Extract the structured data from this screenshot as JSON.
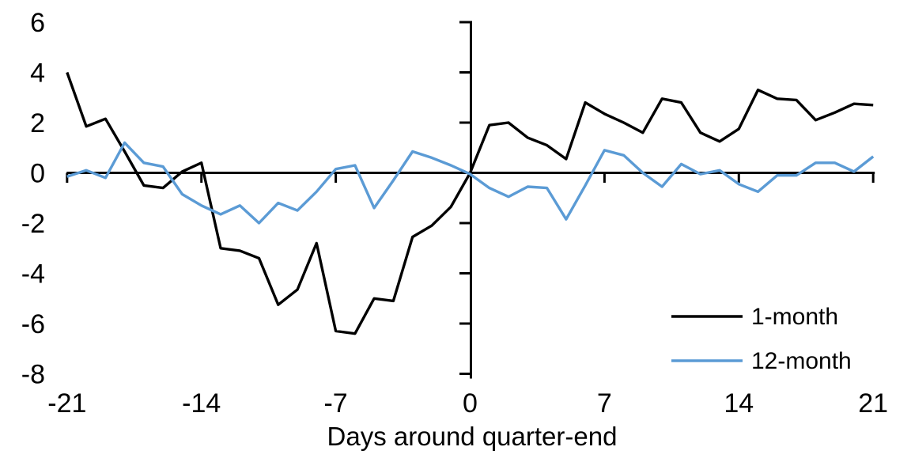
{
  "chart_data": {
    "type": "line",
    "title": "",
    "xlabel": "Days around quarter-end",
    "ylabel": "",
    "xlim": [
      -21,
      21
    ],
    "ylim": [
      -8,
      6
    ],
    "x_ticks": [
      -21,
      -14,
      -7,
      0,
      7,
      14,
      21
    ],
    "y_ticks": [
      6,
      4,
      2,
      0,
      -2,
      -4,
      -6,
      -8
    ],
    "grid": false,
    "legend_position": "bottom-right",
    "axis_color": "#000000",
    "x": [
      -21,
      -20,
      -19,
      -18,
      -17,
      -16,
      -15,
      -14,
      -13,
      -12,
      -11,
      -10,
      -9,
      -8,
      -7,
      -6,
      -5,
      -4,
      -3,
      -2,
      -1,
      0,
      1,
      2,
      3,
      4,
      5,
      6,
      7,
      8,
      9,
      10,
      11,
      12,
      13,
      14,
      15,
      16,
      17,
      18,
      19,
      20,
      21
    ],
    "series": [
      {
        "name": "1-month",
        "color": "#000000",
        "values": [
          4.0,
          1.85,
          2.15,
          0.85,
          -0.5,
          -0.6,
          0.05,
          0.4,
          -3.0,
          -3.1,
          -3.4,
          -5.25,
          -4.65,
          -2.8,
          -6.3,
          -6.4,
          -5.0,
          -5.1,
          -2.55,
          -2.1,
          -1.35,
          0.0,
          1.9,
          2.0,
          1.4,
          1.1,
          0.55,
          2.8,
          2.35,
          2.0,
          1.6,
          2.95,
          2.8,
          1.6,
          1.25,
          1.75,
          3.3,
          2.95,
          2.9,
          2.1,
          2.4,
          2.75,
          2.7
        ]
      },
      {
        "name": "12-month",
        "color": "#5B9BD5",
        "values": [
          -0.15,
          0.1,
          -0.2,
          1.2,
          0.4,
          0.25,
          -0.85,
          -1.3,
          -1.65,
          -1.3,
          -2.0,
          -1.2,
          -1.5,
          -0.75,
          0.15,
          0.3,
          -1.4,
          -0.3,
          0.85,
          0.6,
          0.3,
          -0.05,
          -0.6,
          -0.95,
          -0.55,
          -0.6,
          -1.85,
          -0.5,
          0.9,
          0.7,
          0.0,
          -0.55,
          0.35,
          -0.05,
          0.1,
          -0.45,
          -0.75,
          -0.1,
          -0.1,
          0.4,
          0.4,
          0.05,
          0.65
        ]
      }
    ]
  }
}
